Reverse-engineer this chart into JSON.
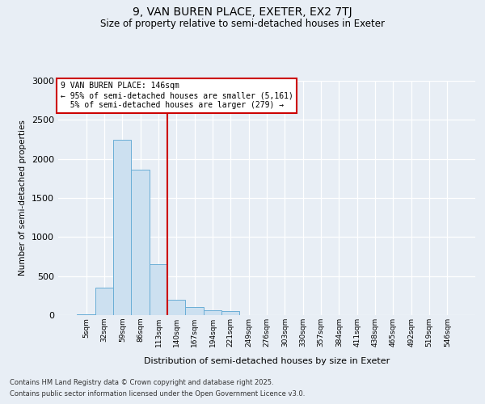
{
  "title1": "9, VAN BUREN PLACE, EXETER, EX2 7TJ",
  "title2": "Size of property relative to semi-detached houses in Exeter",
  "xlabel": "Distribution of semi-detached houses by size in Exeter",
  "ylabel": "Number of semi-detached properties",
  "categories": [
    "5sqm",
    "32sqm",
    "59sqm",
    "86sqm",
    "113sqm",
    "140sqm",
    "167sqm",
    "194sqm",
    "221sqm",
    "249sqm",
    "276sqm",
    "303sqm",
    "330sqm",
    "357sqm",
    "384sqm",
    "411sqm",
    "438sqm",
    "465sqm",
    "492sqm",
    "519sqm",
    "546sqm"
  ],
  "values": [
    10,
    350,
    2250,
    1860,
    650,
    200,
    100,
    60,
    50,
    0,
    0,
    0,
    0,
    0,
    0,
    0,
    0,
    0,
    0,
    0,
    0
  ],
  "bar_color": "#cce0f0",
  "bar_edge_color": "#6aaed6",
  "vline_color": "#cc0000",
  "vline_index": 5,
  "property_sqm": 146,
  "pct_smaller": 95,
  "count_smaller": 5161,
  "pct_larger": 5,
  "count_larger": 279,
  "annotation_box_color": "#cc0000",
  "ylim": [
    0,
    3000
  ],
  "yticks": [
    0,
    500,
    1000,
    1500,
    2000,
    2500,
    3000
  ],
  "footnote1": "Contains HM Land Registry data © Crown copyright and database right 2025.",
  "footnote2": "Contains public sector information licensed under the Open Government Licence v3.0.",
  "bg_color": "#e8eef5",
  "plot_bg_color": "#e8eef5"
}
